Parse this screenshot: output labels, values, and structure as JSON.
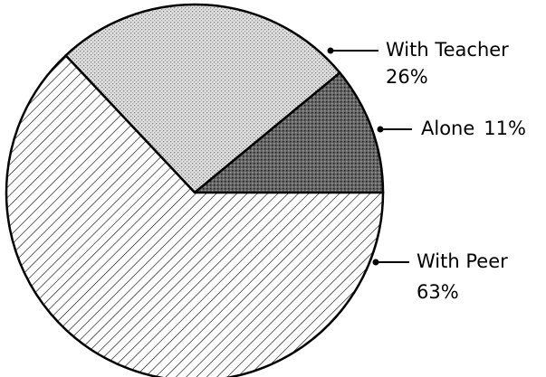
{
  "chart_data": {
    "type": "pie",
    "categories": [
      "Alone",
      "With Teacher",
      "With Peer"
    ],
    "values": [
      11,
      26,
      63
    ],
    "value_labels": [
      "11%",
      "26%",
      "63%"
    ]
  }
}
